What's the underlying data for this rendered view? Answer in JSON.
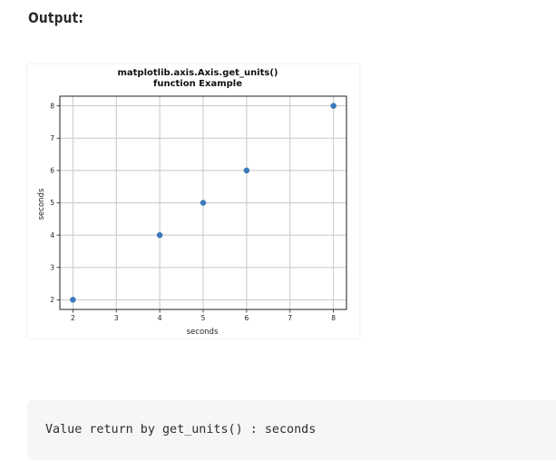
{
  "heading": "Output:",
  "chart_data": {
    "type": "scatter",
    "title_lines": [
      "matplotlib.axis.Axis.get_units()",
      "function Example"
    ],
    "xlabel": "seconds",
    "ylabel": "seconds",
    "x": [
      2,
      4,
      5,
      6,
      8
    ],
    "y": [
      2,
      4,
      5,
      6,
      8
    ],
    "xlim": [
      1.7,
      8.3
    ],
    "ylim": [
      1.7,
      8.3
    ],
    "xticks": [
      2,
      3,
      4,
      5,
      6,
      7,
      8
    ],
    "yticks": [
      2,
      3,
      4,
      5,
      6,
      7,
      8
    ],
    "grid": true,
    "marker_color": "#3a7bbf"
  },
  "code_output": {
    "text": "Value return by get_units() : seconds"
  }
}
